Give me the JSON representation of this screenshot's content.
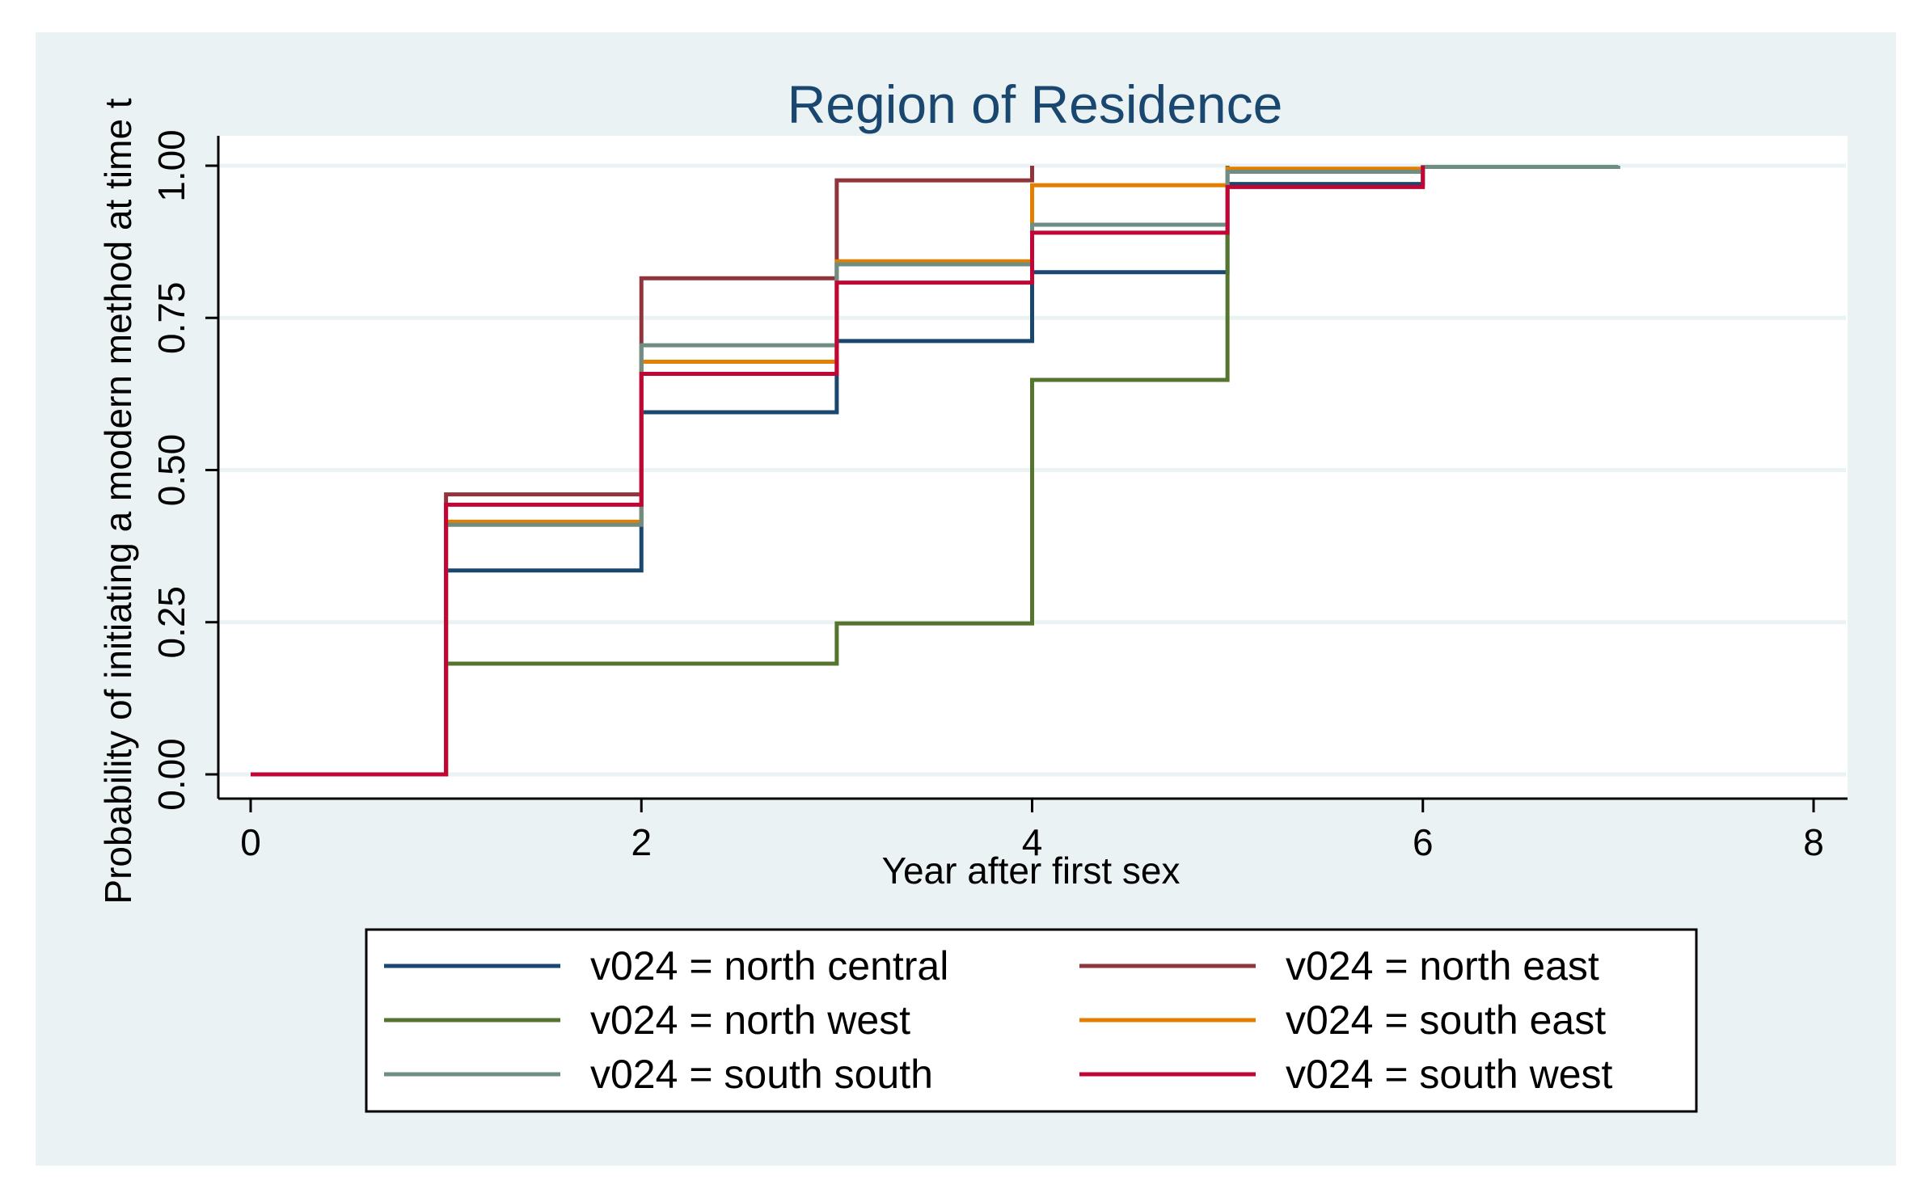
{
  "chart_data": {
    "type": "line",
    "step": true,
    "title": "Region of Residence",
    "xlabel": "Year after first sex",
    "ylabel": "Probability of initiating a modern method at time t",
    "xlim": [
      0,
      8
    ],
    "ylim": [
      0,
      1
    ],
    "xticks": [
      "0",
      "2",
      "4",
      "6",
      "8"
    ],
    "yticks": [
      "0.00",
      "0.25",
      "0.50",
      "0.75",
      "1.00"
    ],
    "xtick_values": [
      0,
      2,
      4,
      6,
      8
    ],
    "ytick_values": [
      0,
      0.25,
      0.5,
      0.75,
      1.0
    ],
    "grid": true,
    "legend_position": "bottom",
    "series": [
      {
        "name": "v024 = north central",
        "color": "#1a476f",
        "x": [
          0,
          1,
          2,
          3,
          4,
          5,
          6
        ],
        "values": [
          0,
          0.335,
          0.595,
          0.712,
          0.825,
          0.97,
          1.0
        ]
      },
      {
        "name": "v024 = north east",
        "color": "#90353b",
        "x": [
          0,
          1,
          2,
          3,
          4
        ],
        "values": [
          0,
          0.46,
          0.815,
          0.976,
          1.0
        ]
      },
      {
        "name": "v024 = north west",
        "color": "#55752f",
        "x": [
          0,
          1,
          3,
          4,
          5
        ],
        "values": [
          0,
          0.182,
          0.248,
          0.648,
          1.0
        ]
      },
      {
        "name": "v024 = south east",
        "color": "#e37e00",
        "x": [
          0,
          1,
          2,
          3,
          4,
          5,
          6
        ],
        "values": [
          0,
          0.415,
          0.678,
          0.843,
          0.968,
          0.995,
          1.0
        ]
      },
      {
        "name": "v024 = south south",
        "color": "#6e8e84",
        "x": [
          0,
          1,
          2,
          3,
          4,
          5,
          6,
          7
        ],
        "values": [
          0,
          0.41,
          0.705,
          0.838,
          0.903,
          0.99,
          0.998,
          1.0
        ]
      },
      {
        "name": "v024 = south west",
        "color": "#c10534",
        "x": [
          0,
          1,
          2,
          3,
          4,
          5,
          6
        ],
        "values": [
          0,
          0.443,
          0.658,
          0.808,
          0.89,
          0.965,
          1.0
        ]
      }
    ]
  }
}
